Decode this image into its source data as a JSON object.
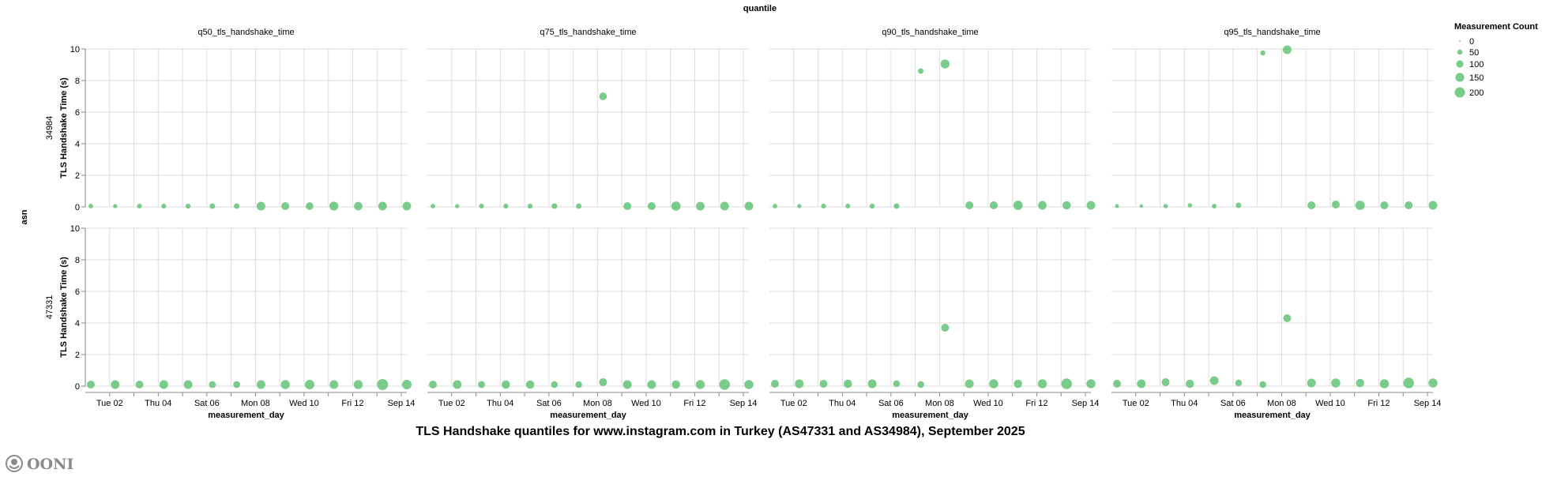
{
  "chart_data": {
    "type": "scatter",
    "title": "TLS Handshake quantiles for www.instagram.com in Turkey (AS47331 and AS34984), September 2025",
    "column_facet_title": "quantile",
    "columns": [
      "q50_tls_handshake_time",
      "q75_tls_handshake_time",
      "q90_tls_handshake_time",
      "q95_tls_handshake_time"
    ],
    "row_facet_title": "asn",
    "rows": [
      "34984",
      "47331"
    ],
    "xlabel": "measurement_day",
    "ylabel": "TLS Handshake Time (s)",
    "x": [
      "2025-09-01",
      "2025-09-02",
      "2025-09-03",
      "2025-09-04",
      "2025-09-05",
      "2025-09-06",
      "2025-09-07",
      "2025-09-08",
      "2025-09-09",
      "2025-09-10",
      "2025-09-11",
      "2025-09-12",
      "2025-09-13",
      "2025-09-14"
    ],
    "xtick_labels": {
      "2025-09-02": "Tue 02",
      "2025-09-04": "Thu 04",
      "2025-09-06": "Sat 06",
      "2025-09-08": "Mon 08",
      "2025-09-10": "Wed 10",
      "2025-09-12": "Fri 12",
      "2025-09-14": "Sep 14"
    },
    "ylim": [
      0,
      10
    ],
    "yticks": [
      0,
      2,
      4,
      6,
      8,
      10
    ],
    "grid": true,
    "color": "#6cc67d",
    "size_legend": {
      "title": "Measurement Count",
      "values": [
        0,
        50,
        100,
        150,
        200
      ],
      "labels": [
        "0",
        "50",
        "100",
        "150",
        "200"
      ],
      "placement": "top-right"
    },
    "panels": [
      {
        "row": "34984",
        "column": "q50_tls_handshake_time",
        "y": [
          0.05,
          0.05,
          0.05,
          0.05,
          0.05,
          0.05,
          0.05,
          0.05,
          0.05,
          0.05,
          0.05,
          0.05,
          0.05,
          0.05
        ],
        "count": [
          40,
          32,
          45,
          45,
          48,
          60,
          60,
          143,
          120,
          110,
          150,
          135,
          140,
          140
        ]
      },
      {
        "row": "34984",
        "column": "q75_tls_handshake_time",
        "y": [
          0.05,
          0.05,
          0.05,
          0.05,
          0.05,
          0.05,
          0.05,
          7.0,
          0.05,
          0.05,
          0.05,
          0.05,
          0.05,
          0.05
        ],
        "count": [
          40,
          32,
          45,
          45,
          48,
          60,
          60,
          110,
          120,
          120,
          165,
          140,
          140,
          140
        ]
      },
      {
        "row": "34984",
        "column": "q90_tls_handshake_time",
        "y": [
          0.05,
          0.05,
          0.05,
          0.05,
          0.05,
          0.05,
          8.6,
          9.05,
          0.1,
          0.1,
          0.1,
          0.1,
          0.1,
          0.1
        ],
        "count": [
          40,
          32,
          45,
          45,
          48,
          60,
          60,
          150,
          120,
          120,
          165,
          140,
          130,
          140
        ]
      },
      {
        "row": "34984",
        "column": "q95_tls_handshake_time",
        "y": [
          0.05,
          0.05,
          0.05,
          0.1,
          0.05,
          0.1,
          9.75,
          9.95,
          0.1,
          0.15,
          0.1,
          0.1,
          0.1,
          0.1
        ],
        "count": [
          30,
          24,
          36,
          36,
          43,
          58,
          50,
          143,
          120,
          120,
          165,
          120,
          120,
          140
        ]
      },
      {
        "row": "47331",
        "column": "q50_tls_handshake_time",
        "y": [
          0.1,
          0.1,
          0.1,
          0.1,
          0.1,
          0.1,
          0.1,
          0.1,
          0.1,
          0.1,
          0.1,
          0.1,
          0.1,
          0.1
        ],
        "count": [
          118,
          143,
          118,
          143,
          143,
          90,
          90,
          143,
          156,
          170,
          143,
          156,
          232,
          170
        ]
      },
      {
        "row": "47331",
        "column": "q75_tls_handshake_time",
        "y": [
          0.1,
          0.1,
          0.1,
          0.1,
          0.1,
          0.1,
          0.1,
          0.25,
          0.1,
          0.1,
          0.1,
          0.1,
          0.1,
          0.1
        ],
        "count": [
          118,
          143,
          96,
          130,
          130,
          86,
          86,
          118,
          143,
          143,
          130,
          156,
          216,
          156
        ]
      },
      {
        "row": "47331",
        "column": "q90_tls_handshake_time",
        "y": [
          0.15,
          0.15,
          0.15,
          0.15,
          0.15,
          0.15,
          0.1,
          3.7,
          0.15,
          0.15,
          0.15,
          0.15,
          0.15,
          0.15
        ],
        "count": [
          118,
          143,
          118,
          130,
          143,
          86,
          86,
          118,
          143,
          156,
          130,
          156,
          216,
          156
        ]
      },
      {
        "row": "47331",
        "column": "q95_tls_handshake_time",
        "y": [
          0.15,
          0.15,
          0.25,
          0.15,
          0.35,
          0.2,
          0.1,
          4.3,
          0.2,
          0.2,
          0.2,
          0.15,
          0.2,
          0.2
        ],
        "count": [
          118,
          143,
          118,
          130,
          143,
          86,
          86,
          118,
          143,
          156,
          130,
          156,
          216,
          156
        ]
      }
    ]
  },
  "logo": {
    "text": "OONI"
  }
}
